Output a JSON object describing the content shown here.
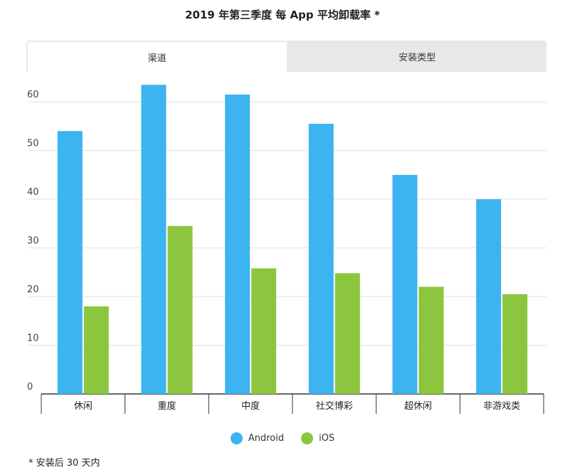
{
  "header": {
    "title": "2019 年第三季度 每 App 平均卸载率 *"
  },
  "tabs": [
    {
      "label": "渠道",
      "active": true
    },
    {
      "label": "安装类型",
      "active": false
    }
  ],
  "chart_data": {
    "type": "bar",
    "title": "2019 年第三季度 每 App 平均卸载率 *",
    "xlabel": "",
    "ylabel": "",
    "ylim": [
      0,
      65
    ],
    "yticks": [
      0,
      10,
      20,
      30,
      40,
      50,
      60
    ],
    "grid": true,
    "legend_position": "bottom",
    "categories": [
      "休闲",
      "重度",
      "中度",
      "社交博彩",
      "超休闲",
      "非游戏类"
    ],
    "series": [
      {
        "name": "Android",
        "color": "#3cb4f0",
        "values": [
          54,
          63.5,
          61.5,
          55.5,
          45,
          40
        ]
      },
      {
        "name": "iOS",
        "color": "#8cc63f",
        "values": [
          18,
          34.5,
          25.8,
          24.8,
          22,
          20.5
        ]
      }
    ]
  },
  "legend": {
    "android": "Android",
    "ios": "iOS",
    "android_color": "#3cb4f0",
    "ios_color": "#8cc63f"
  },
  "footnote": "* 安装后 30 天内"
}
